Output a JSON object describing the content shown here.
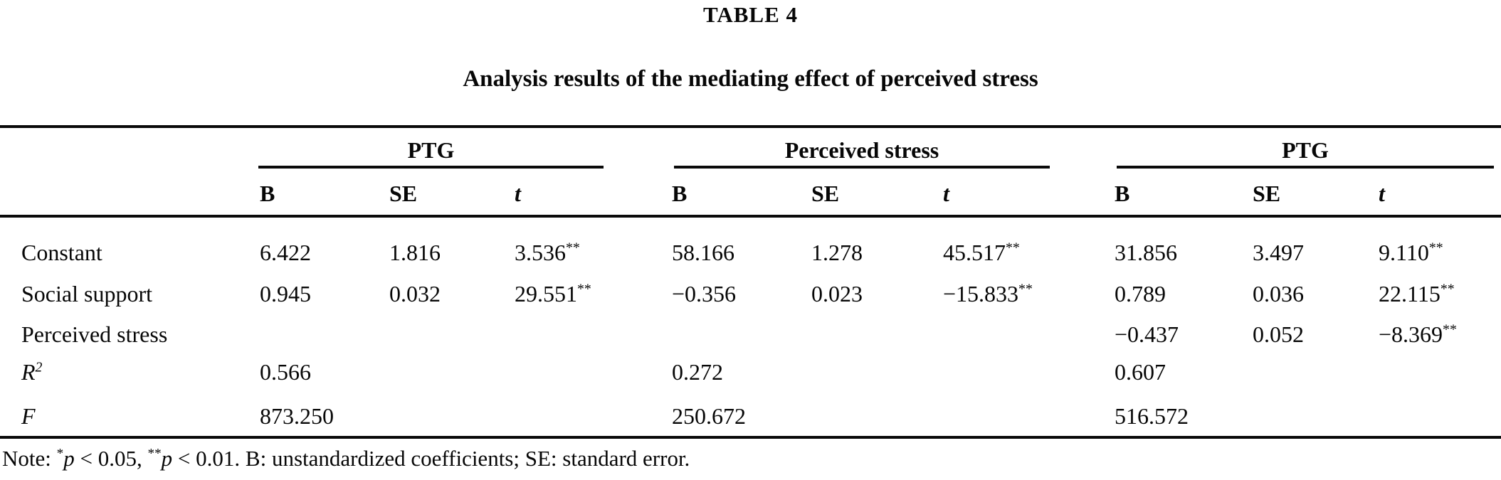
{
  "page": {
    "label": "TABLE 4",
    "caption": "Analysis results of the mediating effect of perceived stress"
  },
  "table": {
    "groups": [
      {
        "label": "PTG"
      },
      {
        "label": "Perceived stress"
      },
      {
        "label": "PTG"
      }
    ],
    "col_headers": [
      "B",
      "SE",
      "t",
      "B",
      "SE",
      "t",
      "B",
      "SE",
      "t"
    ],
    "rows": [
      {
        "label": "Constant",
        "cells": [
          {
            "t": "6.422",
            "s": ""
          },
          {
            "t": "1.816",
            "s": ""
          },
          {
            "t": "3.536",
            "s": "**"
          },
          {
            "t": "58.166",
            "s": ""
          },
          {
            "t": "1.278",
            "s": ""
          },
          {
            "t": "45.517",
            "s": "**"
          },
          {
            "t": "31.856",
            "s": ""
          },
          {
            "t": "3.497",
            "s": ""
          },
          {
            "t": "9.110",
            "s": "**"
          }
        ]
      },
      {
        "label": "Social support",
        "cells": [
          {
            "t": "0.945",
            "s": ""
          },
          {
            "t": "0.032",
            "s": ""
          },
          {
            "t": "29.551",
            "s": "**"
          },
          {
            "t": "−0.356",
            "s": ""
          },
          {
            "t": "0.023",
            "s": ""
          },
          {
            "t": "−15.833",
            "s": "**"
          },
          {
            "t": "0.789",
            "s": ""
          },
          {
            "t": "0.036",
            "s": ""
          },
          {
            "t": "22.115",
            "s": "**"
          }
        ]
      },
      {
        "label": "Perceived stress",
        "cells": [
          {
            "t": "",
            "s": ""
          },
          {
            "t": "",
            "s": ""
          },
          {
            "t": "",
            "s": ""
          },
          {
            "t": "",
            "s": ""
          },
          {
            "t": "",
            "s": ""
          },
          {
            "t": "",
            "s": ""
          },
          {
            "t": "−0.437",
            "s": ""
          },
          {
            "t": "0.052",
            "s": ""
          },
          {
            "t": "−8.369",
            "s": "**"
          }
        ]
      },
      {
        "label": "R",
        "label_sup": "2",
        "cells": [
          {
            "t": "0.566",
            "s": ""
          },
          {
            "t": "",
            "s": ""
          },
          {
            "t": "",
            "s": ""
          },
          {
            "t": "0.272",
            "s": ""
          },
          {
            "t": "",
            "s": ""
          },
          {
            "t": "",
            "s": ""
          },
          {
            "t": "0.607",
            "s": ""
          },
          {
            "t": "",
            "s": ""
          },
          {
            "t": "",
            "s": ""
          }
        ]
      },
      {
        "label": "F",
        "label_sup": "",
        "cells": [
          {
            "t": "873.250",
            "s": ""
          },
          {
            "t": "",
            "s": ""
          },
          {
            "t": "",
            "s": ""
          },
          {
            "t": "250.672",
            "s": ""
          },
          {
            "t": "",
            "s": ""
          },
          {
            "t": "",
            "s": ""
          },
          {
            "t": "516.572",
            "s": ""
          },
          {
            "t": "",
            "s": ""
          },
          {
            "t": "",
            "s": ""
          }
        ]
      }
    ],
    "note": {
      "seg0": "Note: ",
      "seg1": "*",
      "seg2": "p",
      "seg3": " < 0.05, ",
      "seg4": "**",
      "seg5": "p",
      "seg6": " < 0.01. B: unstandardized coefficients; SE: standard error."
    }
  }
}
